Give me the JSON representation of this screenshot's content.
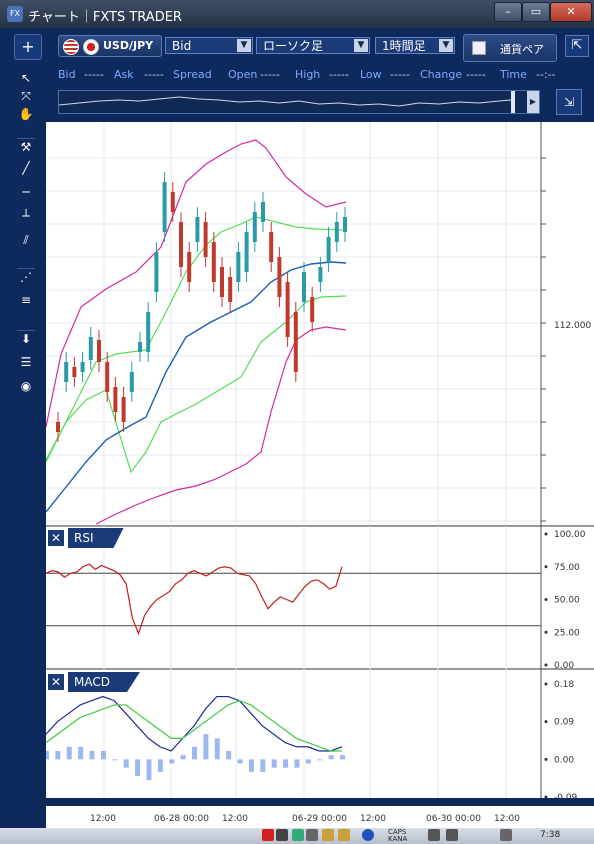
{
  "window": {
    "title": "チャート｜FXTS TRADER",
    "app_icon": "FX"
  },
  "toolbar": {
    "plus_label": "+",
    "symbol": "USD/JPY",
    "price_type": "Bid",
    "chart_type": "ローソク足",
    "timeframe": "1時間足",
    "currency_tab": "通貨ペア",
    "dropdown_glyph": "▼"
  },
  "quote_bar": {
    "labels": [
      "Bid",
      "Ask",
      "Spread",
      "Open",
      "High",
      "Low",
      "Change",
      "Time"
    ],
    "values": [
      "-----",
      "-----",
      "-----",
      "-----",
      "-----",
      "-----",
      "-----",
      "--:--"
    ]
  },
  "price_axis": {
    "label": "112.000"
  },
  "rsi_panel": {
    "title": "RSI",
    "ticks": [
      "100.00",
      "75.00",
      "50.00",
      "25.00",
      "0.00"
    ]
  },
  "macd_panel": {
    "title": "MACD",
    "ticks": [
      "0.18",
      "0.09",
      "0.00",
      "-0.09"
    ]
  },
  "time_axis": {
    "labels": [
      "12:00",
      "06-28 00:00",
      "12:00",
      "06-29 00:00",
      "12:00",
      "06-30 00:00",
      "12:00"
    ]
  },
  "taskbar": {
    "caps": "CAPS",
    "kana": "KANA",
    "clock": "7:38"
  },
  "chart_data": [
    {
      "type": "candlestick",
      "name": "main",
      "y_label_shown": "112.000",
      "indicators": [
        "bollinger_bands",
        "moving_average"
      ]
    },
    {
      "type": "line",
      "name": "RSI",
      "ylim": [
        0,
        100
      ],
      "levels": [
        70,
        30
      ],
      "values": [
        70,
        72,
        71,
        67,
        70,
        71,
        75,
        77,
        73,
        76,
        74,
        72,
        69,
        62,
        36,
        24,
        38,
        45,
        50,
        53,
        56,
        62,
        65,
        70,
        72,
        70,
        68,
        71,
        74,
        75,
        74,
        70,
        69,
        68,
        62,
        52,
        43,
        48,
        52,
        50,
        48,
        54,
        60,
        64,
        65,
        62,
        58,
        60,
        75
      ]
    },
    {
      "type": "line",
      "name": "MACD",
      "ylim": [
        -0.09,
        0.18
      ],
      "series": [
        {
          "values": [
            0.06,
            0.09,
            0.11,
            0.13,
            0.14,
            0.15,
            0.14,
            0.11,
            0.08,
            0.05,
            0.03,
            0.02,
            0.05,
            0.08,
            0.12,
            0.15,
            0.15,
            0.14,
            0.11,
            0.08,
            0.06,
            0.04,
            0.03,
            0.03,
            0.02,
            0.02,
            0.03
          ]
        },
        {
          "values": [
            0.04,
            0.06,
            0.08,
            0.1,
            0.11,
            0.12,
            0.13,
            0.13,
            0.11,
            0.09,
            0.07,
            0.05,
            0.05,
            0.07,
            0.09,
            0.11,
            0.13,
            0.14,
            0.13,
            0.11,
            0.09,
            0.07,
            0.05,
            0.04,
            0.03,
            0.02,
            0.02
          ]
        }
      ],
      "histogram": [
        0.02,
        0.02,
        0.03,
        0.03,
        0.02,
        0.02,
        0.0,
        -0.02,
        -0.04,
        -0.05,
        -0.03,
        -0.01,
        0.01,
        0.03,
        0.06,
        0.05,
        0.02,
        -0.01,
        -0.03,
        -0.03,
        -0.02,
        -0.02,
        -0.02,
        -0.01,
        0.0,
        0.01,
        0.01
      ]
    }
  ],
  "colors": {
    "bg_dark": "#0e2a5c",
    "accent_blue": "#1a3b78",
    "candle_up": "#2a9aa8",
    "candle_down": "#c0392b",
    "bb_outer": "#d42aa0",
    "bb_inner": "#55dd55",
    "ma": "#1c5fb8"
  }
}
